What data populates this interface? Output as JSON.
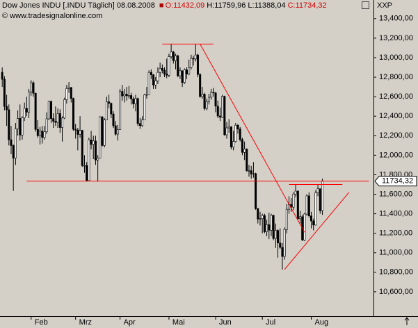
{
  "chart_data": {
    "type": "candlestick",
    "title": "Dow Jones INDU [.INDU  Täglich] 08.08.2008",
    "info": [
      {
        "text": "O:11432,09",
        "color": "#d00000"
      },
      {
        "text": "H:11759,96",
        "color": "#000000"
      },
      {
        "text": "L:11388,04",
        "color": "#000000"
      },
      {
        "text": "C:11734,32",
        "color": "#d00000"
      }
    ],
    "source": "© www.tradesignalonline.com",
    "symbol": "XXP",
    "last_label": "11734,32",
    "up_color": "#ffffff",
    "down_color": "#000000",
    "categories": [
      null,
      null,
      null,
      null,
      null,
      null,
      null,
      null,
      null,
      null,
      null,
      null,
      null,
      "Feb",
      null,
      null,
      null,
      null,
      null,
      null,
      null,
      null,
      null,
      null,
      null,
      null,
      null,
      null,
      null,
      null,
      null,
      null,
      null,
      "Mrz",
      null,
      null,
      null,
      null,
      null,
      null,
      null,
      null,
      null,
      null,
      null,
      null,
      null,
      null,
      null,
      null,
      null,
      null,
      null,
      "Apr",
      null,
      null,
      null,
      null,
      null,
      null,
      null,
      null,
      null,
      null,
      null,
      null,
      null,
      null,
      null,
      null,
      null,
      null,
      null,
      null,
      null,
      "Mai",
      null,
      null,
      null,
      null,
      null,
      null,
      null,
      null,
      null,
      null,
      null,
      null,
      null,
      null,
      null,
      null,
      null,
      null,
      null,
      null,
      "Jun",
      null,
      null,
      null,
      null,
      null,
      null,
      null,
      null,
      null,
      null,
      null,
      null,
      null,
      null,
      null,
      null,
      null,
      null,
      null,
      null,
      "Jul",
      null,
      null,
      null,
      null,
      null,
      null,
      null,
      null,
      null,
      null,
      null,
      null,
      null,
      null,
      null,
      null,
      null,
      null,
      null,
      null,
      null,
      "Aug",
      null,
      null,
      null,
      null,
      null
    ],
    "open": [
      12850,
      12778,
      12501,
      12466,
      12159,
      12099,
      11971,
      12270,
      12378,
      12207,
      12383,
      12480,
      12442,
      12650,
      12743,
      12635,
      12265,
      12200,
      12248,
      12182,
      12240,
      12373,
      12552,
      12376,
      12348,
      12337,
      12427,
      12284,
      12381,
      12570,
      12684,
      12694,
      12582,
      12266,
      12258,
      12213,
      12254,
      11893,
      11894,
      11740,
      12157,
      12111,
      12146,
      11951,
      11972,
      12393,
      12100,
      12361,
      12548,
      12532,
      12422,
      12302,
      12216,
      12263,
      12654,
      12608,
      12626,
      12609,
      12612,
      12577,
      12527,
      12581,
      12325,
      12303,
      12362,
      12619,
      12620,
      12849,
      12825,
      12720,
      12763,
      12849,
      12891,
      12871,
      12832,
      12820,
      13010,
      13058,
      12969,
      13020,
      12814,
      12866,
      12745,
      12876,
      12832,
      12898,
      12992,
      12986,
      13028,
      12828,
      12601,
      12625,
      12479,
      12548,
      12594,
      12646,
      12638,
      12503,
      12402,
      12390,
      12604,
      12209,
      12280,
      12289,
      12084,
      12141,
      12307,
      12269,
      12160,
      12029,
      12063,
      11842,
      11842,
      11808,
      11811,
      11453,
      11346,
      11350,
      11382,
      11215,
      11288,
      11231,
      11384,
      11147,
      11229,
      11100,
      11055,
      10962,
      11239,
      11446,
      11496,
      11467,
      11602,
      11632,
      11349,
      11370,
      11131,
      11397,
      11583,
      11378,
      11326,
      11284,
      11615,
      11656,
      11432.09
    ],
    "high": [
      12900,
      12810,
      12620,
      12520,
      12300,
      12110,
      12330,
      12460,
      12520,
      12400,
      12540,
      12600,
      12680,
      12770,
      12760,
      12640,
      12360,
      12290,
      12300,
      12300,
      12440,
      12560,
      12560,
      12430,
      12500,
      12480,
      12470,
      12400,
      12590,
      12720,
      12750,
      12700,
      12590,
      12320,
      12280,
      12400,
      12260,
      12000,
      11930,
      12180,
      12250,
      12200,
      12200,
      12000,
      12400,
      12400,
      12380,
      12600,
      12620,
      12540,
      12450,
      12350,
      12310,
      12680,
      12720,
      12680,
      12700,
      12710,
      12640,
      12600,
      12620,
      12590,
      12380,
      12400,
      12630,
      12700,
      12870,
      12880,
      12830,
      12800,
      12900,
      12950,
      12930,
      12900,
      12990,
      13040,
      13141,
      13070,
      13040,
      13030,
      12900,
      12870,
      12890,
      12900,
      12980,
      13030,
      13020,
      13136,
      13040,
      12840,
      12700,
      12640,
      12580,
      12630,
      12680,
      12690,
      12650,
      12560,
      12490,
      12620,
      12610,
      12340,
      12370,
      12300,
      12250,
      12330,
      12320,
      12290,
      12180,
      12140,
      12070,
      11900,
      11890,
      11930,
      11820,
      11460,
      11420,
      11400,
      11400,
      11340,
      11410,
      11400,
      11390,
      11300,
      11240,
      11250,
      11100,
      11260,
      11500,
      11580,
      11560,
      11620,
      11700,
      11640,
      11430,
      11390,
      11410,
      11600,
      11620,
      11420,
      11350,
      11640,
      11700,
      11660,
      11759.96
    ],
    "low": [
      12700,
      12460,
      12300,
      12100,
      12010,
      11634,
      11900,
      12200,
      12150,
      12160,
      12350,
      12400,
      12380,
      12610,
      12600,
      12240,
      12180,
      12110,
      12120,
      12160,
      12220,
      12360,
      12330,
      12280,
      12300,
      12280,
      12230,
      12140,
      12370,
      12530,
      12640,
      12540,
      12250,
      12170,
      12050,
      12180,
      11880,
      11820,
      11730,
      11740,
      12060,
      11960,
      11900,
      11730,
      11970,
      12090,
      12080,
      12360,
      12480,
      12380,
      12280,
      12200,
      12150,
      12260,
      12560,
      12540,
      12560,
      12580,
      12520,
      12480,
      12450,
      12300,
      12270,
      12290,
      12360,
      12580,
      12620,
      12780,
      12680,
      12680,
      12730,
      12800,
      12840,
      12800,
      12790,
      12800,
      12990,
      12940,
      12880,
      12800,
      12780,
      12700,
      12730,
      12780,
      12820,
      12880,
      12920,
      12960,
      12800,
      12590,
      12580,
      12460,
      12460,
      12520,
      12570,
      12600,
      12440,
      12380,
      12350,
      12380,
      12200,
      12170,
      12230,
      12060,
      12050,
      12130,
      12220,
      12140,
      12000,
      11950,
      11830,
      11780,
      11760,
      11770,
      11440,
      11300,
      11280,
      11200,
      11200,
      11170,
      11140,
      11170,
      11130,
      11050,
      10950,
      11040,
      10828,
      10930,
      11200,
      11400,
      11420,
      11440,
      11570,
      11340,
      11300,
      11120,
      11120,
      11380,
      11360,
      11250,
      11230,
      11280,
      11580,
      11400,
      11388.04
    ],
    "close": [
      12778,
      12501,
      12466,
      12159,
      12099,
      11971,
      12270,
      12378,
      12207,
      12383,
      12480,
      12442,
      12650,
      12743,
      12635,
      12265,
      12200,
      12248,
      12182,
      12240,
      12373,
      12552,
      12376,
      12348,
      12337,
      12427,
      12284,
      12381,
      12570,
      12684,
      12694,
      12582,
      12266,
      12258,
      12213,
      12254,
      11893,
      11894,
      11740,
      12157,
      12111,
      12146,
      11951,
      11972,
      12393,
      12100,
      12361,
      12548,
      12532,
      12422,
      12302,
      12216,
      12263,
      12654,
      12608,
      12626,
      12609,
      12612,
      12577,
      12527,
      12581,
      12325,
      12303,
      12362,
      12619,
      12620,
      12849,
      12825,
      12720,
      12763,
      12849,
      12891,
      12871,
      12832,
      12820,
      13010,
      13058,
      12969,
      13020,
      12814,
      12866,
      12745,
      12876,
      12832,
      12898,
      12992,
      12986,
      13028,
      12828,
      12601,
      12625,
      12479,
      12548,
      12594,
      12646,
      12638,
      12503,
      12402,
      12390,
      12604,
      12209,
      12280,
      12289,
      12084,
      12141,
      12307,
      12269,
      12160,
      12029,
      12063,
      11842,
      11842,
      11808,
      11811,
      11453,
      11346,
      11350,
      11382,
      11215,
      11288,
      11231,
      11384,
      11147,
      11229,
      11100,
      11055,
      10962,
      11239,
      11446,
      11496,
      11467,
      11602,
      11632,
      11349,
      11370,
      11131,
      11397,
      11583,
      11378,
      11326,
      11284,
      11615,
      11656,
      11431,
      11734.32
    ],
    "trendlines": [
      {
        "color": "#ff0000",
        "x": [
          11,
          165
        ],
        "y": [
          11735,
          11735
        ]
      },
      {
        "color": "#ff0000",
        "x": [
          72,
          95
        ],
        "y": [
          13140,
          13140
        ]
      },
      {
        "color": "#ff0000",
        "x": [
          89,
          136
        ],
        "y": [
          13140,
          11210
        ]
      },
      {
        "color": "#ff0000",
        "x": [
          129,
          153
        ],
        "y": [
          11700,
          11700
        ]
      },
      {
        "color": "#ff0000",
        "x": [
          127,
          156
        ],
        "y": [
          10829,
          11620
        ]
      }
    ],
    "xlim": [
      -1,
      167
    ],
    "ylim": [
      10350,
      13470
    ],
    "yticks": [
      {
        "value": 10600,
        "label": "10,600,00"
      },
      {
        "value": 10800,
        "label": "10,800,00"
      },
      {
        "value": 11000,
        "label": "11,000,00"
      },
      {
        "value": 11200,
        "label": "11,200,00"
      },
      {
        "value": 11400,
        "label": "11,400,00"
      },
      {
        "value": 11600,
        "label": "11,600,00"
      },
      {
        "value": 11800,
        "label": "11,800,00"
      },
      {
        "value": 12000,
        "label": "12,000,00"
      },
      {
        "value": 12200,
        "label": "12,200,00"
      },
      {
        "value": 12400,
        "label": "12,400,00"
      },
      {
        "value": 12600,
        "label": "12,600,00"
      },
      {
        "value": 12800,
        "label": "12,800,00"
      },
      {
        "value": 13000,
        "label": "13,000,00"
      },
      {
        "value": 13200,
        "label": "13,200,00"
      },
      {
        "value": 13400,
        "label": "13,400,00"
      }
    ]
  }
}
